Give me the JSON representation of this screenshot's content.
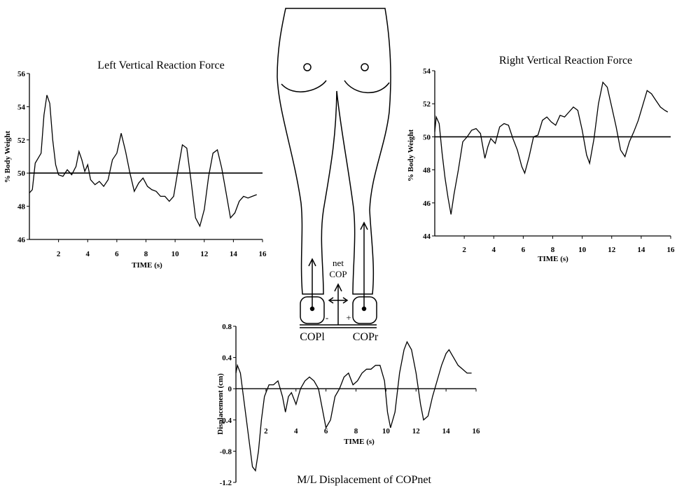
{
  "chart_data": [
    {
      "type": "line",
      "title": "Left Vertical Reaction Force",
      "ylabel": "% Body Weight",
      "xlabel": "TIME (s)",
      "color": "#000000",
      "hline": 50,
      "xlim": [
        0,
        16
      ],
      "ylim": [
        46,
        56
      ],
      "xticks": [
        2,
        4,
        6,
        8,
        10,
        12,
        14,
        16
      ],
      "yticks": [
        46,
        48,
        50,
        52,
        54,
        56
      ],
      "x": [
        0,
        0.2,
        0.4,
        0.6,
        0.8,
        1.0,
        1.2,
        1.4,
        1.6,
        1.8,
        2.0,
        2.3,
        2.6,
        2.9,
        3.2,
        3.4,
        3.6,
        3.8,
        4.0,
        4.2,
        4.5,
        4.8,
        5.1,
        5.4,
        5.7,
        6.0,
        6.3,
        6.6,
        6.9,
        7.2,
        7.5,
        7.8,
        8.1,
        8.4,
        8.7,
        9.0,
        9.3,
        9.6,
        9.9,
        10.2,
        10.5,
        10.8,
        11.1,
        11.4,
        11.7,
        12.0,
        12.3,
        12.6,
        12.9,
        13.2,
        13.5,
        13.8,
        14.1,
        14.4,
        14.7,
        15.0,
        15.3,
        15.6
      ],
      "values": [
        48.8,
        49.0,
        50.6,
        50.9,
        51.2,
        53.5,
        54.7,
        54.2,
        52.0,
        50.5,
        49.9,
        49.8,
        50.2,
        49.9,
        50.4,
        51.3,
        50.8,
        50.1,
        50.5,
        49.6,
        49.3,
        49.5,
        49.2,
        49.6,
        50.8,
        51.2,
        52.4,
        51.3,
        50.0,
        48.9,
        49.4,
        49.7,
        49.2,
        49.0,
        48.9,
        48.6,
        48.6,
        48.3,
        48.6,
        50.2,
        51.7,
        51.5,
        49.5,
        47.3,
        46.8,
        47.8,
        49.8,
        51.2,
        51.4,
        50.3,
        48.8,
        47.3,
        47.6,
        48.3,
        48.6,
        48.5,
        48.6,
        48.7
      ]
    },
    {
      "type": "line",
      "title": "Right Vertical Reaction Force",
      "ylabel": "% Body Weight",
      "xlabel": "TIME (s)",
      "color": "#000000",
      "hline": 50,
      "xlim": [
        0,
        16
      ],
      "ylim": [
        44,
        54
      ],
      "xticks": [
        2,
        4,
        6,
        8,
        10,
        12,
        14,
        16
      ],
      "yticks": [
        44,
        46,
        48,
        50,
        52,
        54
      ],
      "x": [
        0,
        0.1,
        0.3,
        0.5,
        0.7,
        0.9,
        1.1,
        1.3,
        1.6,
        1.9,
        2.2,
        2.5,
        2.8,
        3.1,
        3.4,
        3.6,
        3.8,
        4.1,
        4.4,
        4.7,
        5.0,
        5.3,
        5.6,
        5.9,
        6.1,
        6.4,
        6.7,
        7.0,
        7.3,
        7.6,
        7.9,
        8.2,
        8.5,
        8.8,
        9.1,
        9.4,
        9.7,
        10.0,
        10.3,
        10.5,
        10.8,
        11.1,
        11.4,
        11.7,
        12.0,
        12.3,
        12.6,
        12.9,
        13.2,
        13.5,
        13.8,
        14.1,
        14.4,
        14.7,
        15.0,
        15.3,
        15.6,
        15.8
      ],
      "values": [
        50.3,
        51.2,
        50.8,
        49.0,
        47.5,
        46.3,
        45.3,
        46.5,
        48.0,
        49.7,
        50.0,
        50.4,
        50.5,
        50.2,
        48.7,
        49.4,
        49.9,
        49.6,
        50.6,
        50.8,
        50.7,
        49.9,
        49.2,
        48.2,
        47.8,
        48.8,
        50.0,
        50.1,
        51.0,
        51.2,
        50.9,
        50.7,
        51.3,
        51.2,
        51.5,
        51.8,
        51.6,
        50.4,
        48.9,
        48.4,
        49.9,
        52.0,
        53.3,
        53.0,
        51.8,
        50.6,
        49.2,
        48.8,
        49.7,
        50.3,
        51.0,
        51.9,
        52.8,
        52.6,
        52.2,
        51.8,
        51.6,
        51.5
      ]
    },
    {
      "type": "line",
      "title": "M/L Displacement of COPnet",
      "ylabel": "Displacement (cm)",
      "xlabel": "TIME (s)",
      "color": "#000000",
      "xlim": [
        0,
        16
      ],
      "ylim": [
        -1.2,
        0.8
      ],
      "xticks": [
        2,
        4,
        6,
        8,
        10,
        12,
        14,
        16
      ],
      "yticks": [
        -1.2,
        -0.8,
        -0.4,
        0,
        0.4,
        0.8
      ],
      "x": [
        0,
        0.1,
        0.3,
        0.5,
        0.7,
        0.9,
        1.1,
        1.3,
        1.5,
        1.7,
        1.9,
        2.2,
        2.5,
        2.8,
        3.1,
        3.3,
        3.5,
        3.7,
        4.0,
        4.3,
        4.6,
        4.9,
        5.2,
        5.5,
        5.8,
        6.0,
        6.3,
        6.6,
        6.9,
        7.2,
        7.5,
        7.8,
        8.1,
        8.4,
        8.7,
        9.0,
        9.3,
        9.6,
        9.9,
        10.1,
        10.3,
        10.6,
        10.9,
        11.2,
        11.4,
        11.7,
        12.0,
        12.3,
        12.5,
        12.8,
        13.1,
        13.4,
        13.7,
        14.0,
        14.2,
        14.5,
        14.8,
        15.1,
        15.4,
        15.7
      ],
      "values": [
        0.2,
        0.3,
        0.2,
        -0.1,
        -0.4,
        -0.7,
        -1.0,
        -1.05,
        -0.8,
        -0.4,
        -0.1,
        0.05,
        0.05,
        0.1,
        -0.1,
        -0.3,
        -0.1,
        -0.05,
        -0.2,
        0.0,
        0.1,
        0.15,
        0.1,
        0.0,
        -0.3,
        -0.5,
        -0.4,
        -0.1,
        0.0,
        0.15,
        0.2,
        0.05,
        0.1,
        0.2,
        0.25,
        0.25,
        0.3,
        0.3,
        0.1,
        -0.3,
        -0.5,
        -0.3,
        0.2,
        0.5,
        0.6,
        0.5,
        0.2,
        -0.2,
        -0.4,
        -0.35,
        -0.1,
        0.1,
        0.3,
        0.45,
        0.5,
        0.4,
        0.3,
        0.25,
        0.2,
        0.2
      ]
    }
  ],
  "diagram": {
    "net_label": "net",
    "cop_label": "COP",
    "minus": "-",
    "plus": "+",
    "left_foot": "COPl",
    "right_foot": "COPr"
  }
}
